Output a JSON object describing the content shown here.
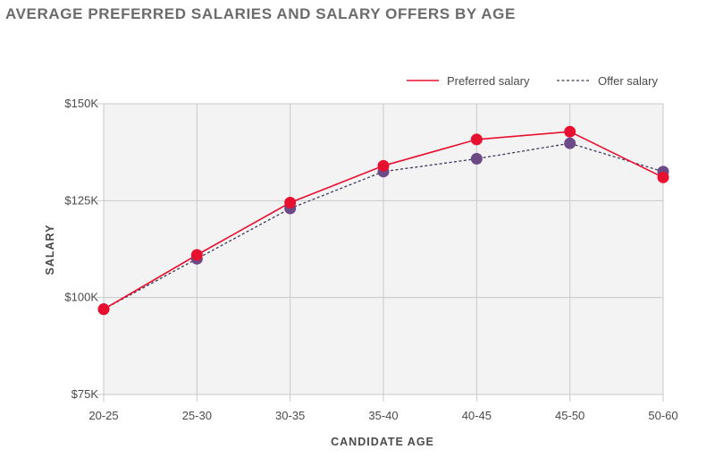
{
  "chart_data": {
    "type": "line",
    "title": "AVERAGE PREFERRED SALARIES AND SALARY OFFERS BY AGE",
    "xlabel": "CANDIDATE AGE",
    "ylabel": "SALARY",
    "categories": [
      "20-25",
      "25-30",
      "30-35",
      "35-40",
      "40-45",
      "45-50",
      "50-60"
    ],
    "yticks": [
      75000,
      100000,
      125000,
      150000
    ],
    "ytick_labels": [
      "$75K",
      "$100K",
      "$125K",
      "$150K"
    ],
    "ylim": [
      75000,
      150000
    ],
    "grid": true,
    "legend_position": "top-right",
    "series": [
      {
        "name": "Preferred salary",
        "values": [
          97000,
          111000,
          124500,
          134000,
          140800,
          142800,
          131000
        ],
        "line_color": "#e8102f",
        "marker_color": "#e8102f",
        "line_style": "solid"
      },
      {
        "name": "Offer salary",
        "values": [
          97000,
          110000,
          123000,
          132500,
          135800,
          139800,
          132500
        ],
        "line_color": "#3a3a5a",
        "marker_color": "#6b4a87",
        "line_style": "dotted"
      }
    ],
    "plot_background": "#f4f3f4",
    "grid_color": "#c9c9c9"
  }
}
